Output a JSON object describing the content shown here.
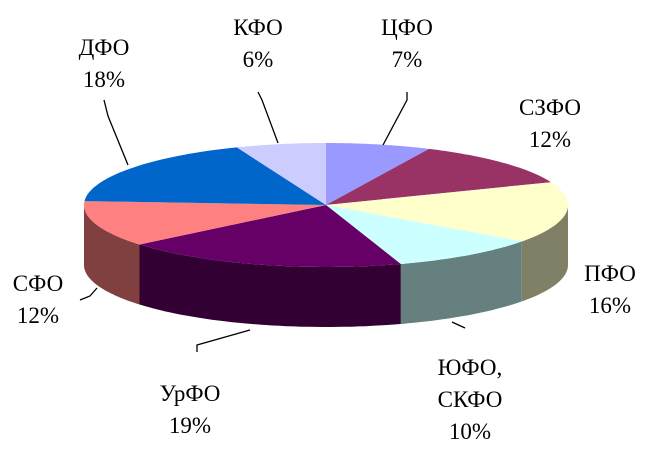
{
  "chart_data": {
    "type": "pie3d",
    "categories": [
      "ЦФО",
      "СЗФО",
      "ПФО",
      "ЮФО, СКФО",
      "УрФО",
      "СФО",
      "ДФО",
      "КФО"
    ],
    "values": [
      7,
      12,
      16,
      10,
      19,
      12,
      18,
      6
    ],
    "value_labels": [
      "7%",
      "12%",
      "16%",
      "10%",
      "19%",
      "12%",
      "18%",
      "6%"
    ],
    "colors": [
      "#9999ff",
      "#993366",
      "#ffffcc",
      "#ccffff",
      "#660066",
      "#ff8080",
      "#0066cc",
      "#ccccff"
    ]
  }
}
